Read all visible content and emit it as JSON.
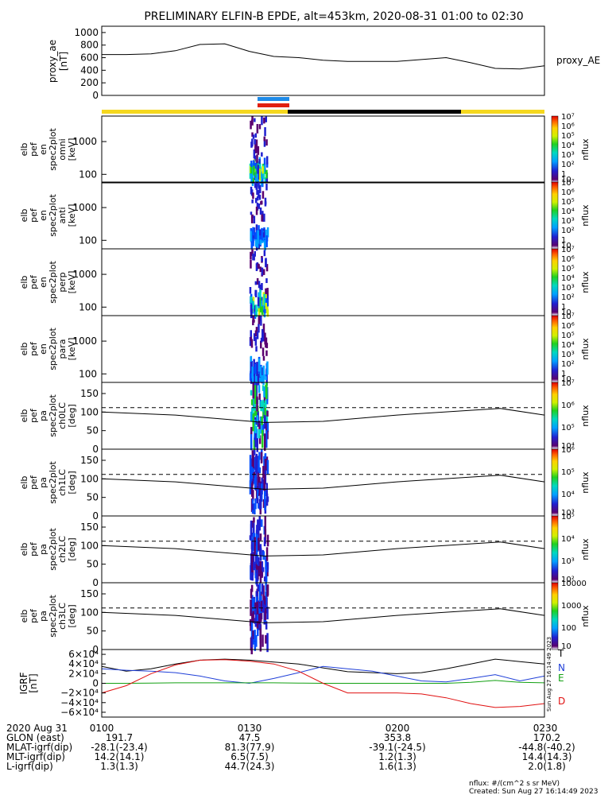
{
  "title": "PRELIMINARY ELFIN-B EPDE, alt=453km, 2020-08-31 01:00 to 02:30",
  "time_axis": {
    "ticks": [
      "0100",
      "0130",
      "0200",
      "0230"
    ],
    "date_label": "2020 Aug 31",
    "rows": [
      {
        "label": "GLON (east)",
        "values": [
          "191.7",
          "47.5",
          "353.8",
          "170.2"
        ]
      },
      {
        "label": "MLAT-igrf(dip)",
        "values": [
          "-28.1(-23.4)",
          "81.3(77.9)",
          "-39.1(-24.5)",
          "-44.8(-40.2)"
        ]
      },
      {
        "label": "MLT-igrf(dip)",
        "values": [
          "14.2(14.1)",
          "6.5(7.5)",
          "1.2(1.3)",
          "14.4(14.3)"
        ]
      },
      {
        "label": "L-igrf(dip)",
        "values": [
          "1.3(1.3)",
          "44.7(24.3)",
          "1.6(1.3)",
          "2.0(1.8)"
        ]
      }
    ]
  },
  "footer": {
    "units": "nflux: #/(cm^2 s sr MeV)",
    "created": "Created: Sun Aug 27 16:14:49 2023",
    "side_stamp": "Sun Aug 27 16:14:49 2023"
  },
  "colors": {
    "state_bar_yellow": "#f5d81e",
    "state_bar_black": "#000000",
    "marker_blue": "#1e8be8",
    "marker_red": "#e02010",
    "grf_T": "#000000",
    "grf_N": "#1f3fd8",
    "grf_E": "#12a012",
    "grf_D": "#e01010"
  },
  "chart_data": [
    {
      "type": "line",
      "panel": "proxy_ae",
      "ylabel": [
        "proxy_ae",
        "[nT]"
      ],
      "legend": "proxy_AE",
      "ylim": [
        0,
        1100
      ],
      "yticks": [
        "0",
        "200",
        "400",
        "600",
        "800",
        "1000"
      ],
      "x_hours": [
        1.0,
        1.083,
        1.167,
        1.25,
        1.333,
        1.417,
        1.5,
        1.583,
        1.667,
        1.75,
        1.833,
        2.0,
        2.083,
        2.167,
        2.25,
        2.333,
        2.417,
        2.5
      ],
      "y": [
        650,
        650,
        660,
        710,
        810,
        820,
        700,
        620,
        600,
        560,
        540,
        540,
        570,
        600,
        520,
        430,
        420,
        470
      ]
    },
    {
      "type": "heatmap",
      "panel": "en_spec_omni",
      "ylabel": [
        "elb",
        "pef",
        "en",
        "spec2plot",
        "omni",
        "[keV]"
      ],
      "yticks": [
        "100",
        "1000"
      ],
      "ylog": true,
      "ylim": [
        55,
        6000
      ],
      "colorbar": [
        "10",
        "1",
        "10²",
        "10³",
        "10⁴",
        "10⁵",
        "10⁶",
        "10⁷"
      ],
      "cbar_label": "nflux",
      "x_range_hours": [
        1.5,
        1.56
      ]
    },
    {
      "type": "heatmap",
      "panel": "en_spec_anti",
      "ylabel": [
        "elb",
        "pef",
        "en",
        "spec2plot",
        "anti",
        "[keV]"
      ],
      "yticks": [
        "100",
        "1000"
      ],
      "ylog": true,
      "ylim": [
        55,
        6000
      ],
      "colorbar": [
        "10",
        "1",
        "10²",
        "10³",
        "10⁴",
        "10⁵",
        "10⁶",
        "10⁷"
      ],
      "cbar_label": "nflux",
      "x_range_hours": [
        1.5,
        1.56
      ]
    },
    {
      "type": "heatmap",
      "panel": "en_spec_perp",
      "ylabel": [
        "elb",
        "pef",
        "en",
        "spec2plot",
        "perp",
        "[keV]"
      ],
      "yticks": [
        "100",
        "1000"
      ],
      "ylog": true,
      "ylim": [
        55,
        6000
      ],
      "colorbar": [
        "10",
        "1",
        "10²",
        "10³",
        "10⁴",
        "10⁵",
        "10⁶",
        "10⁷"
      ],
      "cbar_label": "nflux",
      "x_range_hours": [
        1.5,
        1.56
      ]
    },
    {
      "type": "heatmap",
      "panel": "en_spec_para",
      "ylabel": [
        "elb",
        "pef",
        "en",
        "spec2plot",
        "para",
        "[keV]"
      ],
      "yticks": [
        "100",
        "1000"
      ],
      "ylog": true,
      "ylim": [
        55,
        6000
      ],
      "colorbar": [
        "10",
        "1",
        "10²",
        "10³",
        "10⁴",
        "10⁵",
        "10⁶",
        "10⁷"
      ],
      "cbar_label": "nflux",
      "x_range_hours": [
        1.5,
        1.56
      ]
    },
    {
      "type": "heatmap",
      "panel": "pa_spec_ch0LC",
      "ylabel": [
        "elb",
        "pef",
        "pa",
        "spec2plot",
        "ch0LC",
        "[deg]"
      ],
      "yticks": [
        "0",
        "50",
        "100",
        "150"
      ],
      "ylim": [
        0,
        180
      ],
      "colorbar": [
        "10⁴",
        "10⁵",
        "10⁶",
        "10⁷"
      ],
      "cbar_label": "nflux",
      "lc_dashed": 112,
      "lc_solid": [
        100,
        92,
        72,
        75,
        92,
        110,
        92
      ]
    },
    {
      "type": "heatmap",
      "panel": "pa_spec_ch1LC",
      "ylabel": [
        "elb",
        "pef",
        "pa",
        "spec2plot",
        "ch1LC",
        "[deg]"
      ],
      "yticks": [
        "0",
        "50",
        "100",
        "150"
      ],
      "ylim": [
        0,
        180
      ],
      "colorbar": [
        "10³",
        "10⁴",
        "10⁵",
        "10⁶"
      ],
      "cbar_label": "nflux",
      "lc_dashed": 112,
      "lc_solid": [
        100,
        92,
        72,
        75,
        92,
        110,
        92
      ]
    },
    {
      "type": "heatmap",
      "panel": "pa_spec_ch2LC",
      "ylabel": [
        "elb",
        "pef",
        "pa",
        "spec2plot",
        "ch2LC",
        "[deg]"
      ],
      "yticks": [
        "0",
        "50",
        "100",
        "150"
      ],
      "ylim": [
        0,
        180
      ],
      "colorbar": [
        "10²",
        "10³",
        "10⁴",
        "10⁵"
      ],
      "cbar_label": "nflux",
      "lc_dashed": 112,
      "lc_solid": [
        100,
        92,
        72,
        75,
        92,
        110,
        92
      ]
    },
    {
      "type": "heatmap",
      "panel": "pa_spec_ch3LC",
      "ylabel": [
        "elb",
        "pef",
        "pa",
        "spec2plot",
        "ch3LC",
        "[deg]"
      ],
      "yticks": [
        "0",
        "50",
        "100",
        "150"
      ],
      "ylim": [
        0,
        180
      ],
      "colorbar": [
        "10",
        "100",
        "1000",
        "10000"
      ],
      "cbar_label": "nflux",
      "lc_dashed": 112,
      "lc_solid": [
        100,
        92,
        72,
        75,
        92,
        110,
        92
      ]
    },
    {
      "type": "line",
      "panel": "igrf",
      "ylabel": [
        "IGRF",
        "[nT]"
      ],
      "ylim": [
        -70000,
        70000
      ],
      "yticks": [
        "6×10⁴",
        "4×10⁴",
        "2×10⁴",
        "0",
        "−2×10⁴",
        "−4×10⁴",
        "−6×10⁴"
      ],
      "x_hours": [
        1.0,
        1.083,
        1.167,
        1.25,
        1.333,
        1.417,
        1.5,
        1.583,
        1.667,
        1.75,
        1.833,
        1.917,
        2.0,
        2.083,
        2.167,
        2.25,
        2.333,
        2.417,
        2.5
      ],
      "series": [
        {
          "name": "T",
          "color": "#000000",
          "values": [
            35000,
            25000,
            30000,
            40000,
            48000,
            50000,
            48000,
            44000,
            40000,
            32000,
            24000,
            22000,
            20000,
            22000,
            30000,
            40000,
            50000,
            45000,
            40000
          ]
        },
        {
          "name": "N",
          "color": "#1f3fd8",
          "values": [
            30000,
            27000,
            25000,
            22000,
            15000,
            5000,
            0,
            10000,
            22000,
            35000,
            30000,
            25000,
            15000,
            5000,
            3000,
            10000,
            18000,
            5000,
            15000
          ]
        },
        {
          "name": "E",
          "color": "#12a012",
          "values": [
            0,
            0,
            500,
            1000,
            1000,
            1000,
            1000,
            1000,
            500,
            0,
            0,
            0,
            0,
            0,
            0,
            2000,
            6000,
            2000,
            1000
          ]
        },
        {
          "name": "D",
          "color": "#e01010",
          "values": [
            -20000,
            -5000,
            20000,
            38000,
            48000,
            49000,
            46000,
            40000,
            25000,
            0,
            -20000,
            -20000,
            -20000,
            -22000,
            -30000,
            -42000,
            -50000,
            -48000,
            -42000
          ]
        }
      ]
    }
  ]
}
